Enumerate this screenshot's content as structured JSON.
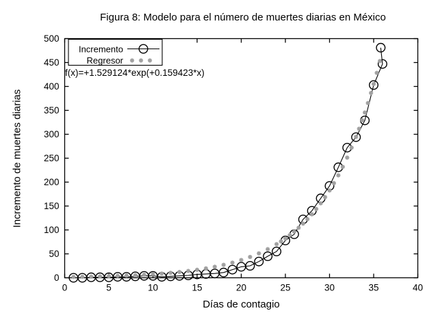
{
  "figure": {
    "background": "#ffffff"
  },
  "chart_data": {
    "type": "line+scatter",
    "title": "Figura 8: Modelo para el número de muertes diarias en México",
    "xlabel": "Días de contagio",
    "ylabel": "Incremento de muertes diarias",
    "xlim": [
      0,
      40
    ],
    "ylim": [
      0,
      500
    ],
    "xticks": [
      0,
      5,
      10,
      15,
      20,
      25,
      30,
      35,
      40
    ],
    "yticks": [
      0,
      50,
      100,
      150,
      200,
      250,
      300,
      350,
      400,
      450,
      500
    ],
    "grid": false,
    "legend_position": "top-left",
    "annotation": "f(x)=+1.529124*exp(+0.159423*x)",
    "fit_coefficients": {
      "a": 1.529124,
      "b": 0.159423
    },
    "colors": {
      "incremento": "#000000",
      "regresor": "#a0a0a0",
      "axis": "#000000"
    },
    "series": [
      {
        "name": "Incremento",
        "style": "linespoints",
        "marker": "open-circle",
        "color": "#000000",
        "points": [
          [
            1,
            0
          ],
          [
            2,
            0
          ],
          [
            3,
            1
          ],
          [
            4,
            1
          ],
          [
            5,
            1
          ],
          [
            6,
            2
          ],
          [
            7,
            2
          ],
          [
            8,
            3
          ],
          [
            9,
            4
          ],
          [
            10,
            4
          ],
          [
            11,
            2
          ],
          [
            12,
            3
          ],
          [
            13,
            4
          ],
          [
            14,
            5
          ],
          [
            15,
            7
          ],
          [
            16,
            8
          ],
          [
            17,
            9
          ],
          [
            18,
            11
          ],
          [
            19,
            17
          ],
          [
            20,
            23
          ],
          [
            21,
            25
          ],
          [
            22,
            34
          ],
          [
            23,
            45
          ],
          [
            24,
            55
          ],
          [
            25,
            78
          ],
          [
            26,
            91
          ],
          [
            27,
            122
          ],
          [
            28,
            140
          ],
          [
            29,
            166
          ],
          [
            30,
            192
          ],
          [
            31,
            231
          ],
          [
            32,
            272
          ],
          [
            33,
            294
          ],
          [
            34,
            329
          ],
          [
            35,
            403
          ],
          [
            36,
            447
          ],
          [
            35.8,
            481
          ]
        ]
      },
      {
        "name": "Regresor",
        "style": "points",
        "marker": "asterisk",
        "color": "#a0a0a0",
        "points": [
          [
            1,
            1.8
          ],
          [
            2,
            2.1
          ],
          [
            3,
            2.5
          ],
          [
            4,
            2.9
          ],
          [
            5,
            3.4
          ],
          [
            6,
            4.0
          ],
          [
            7,
            4.7
          ],
          [
            8,
            5.5
          ],
          [
            9,
            6.4
          ],
          [
            10,
            7.5
          ],
          [
            11,
            8.8
          ],
          [
            12,
            10.4
          ],
          [
            13,
            12.1
          ],
          [
            14,
            14.2
          ],
          [
            15,
            16.7
          ],
          [
            16,
            19.6
          ],
          [
            17,
            23.0
          ],
          [
            18,
            27.0
          ],
          [
            19,
            31.6
          ],
          [
            20,
            37.1
          ],
          [
            21,
            43.5
          ],
          [
            22,
            51.0
          ],
          [
            23,
            59.8
          ],
          [
            24,
            70.2
          ],
          [
            24.5,
            76.0
          ],
          [
            25,
            82.3
          ],
          [
            25.5,
            89.1
          ],
          [
            26,
            96.5
          ],
          [
            26.5,
            104.5
          ],
          [
            27,
            113.2
          ],
          [
            27.5,
            122.6
          ],
          [
            28,
            132.7
          ],
          [
            28.5,
            143.8
          ],
          [
            29,
            155.7
          ],
          [
            29.5,
            168.6
          ],
          [
            30,
            182.6
          ],
          [
            30.5,
            197.8
          ],
          [
            31,
            214.2
          ],
          [
            31.5,
            231.9
          ],
          [
            32,
            251.2
          ],
          [
            32.5,
            272.0
          ],
          [
            33,
            294.6
          ],
          [
            33.35,
            311.5
          ],
          [
            33.7,
            329.4
          ],
          [
            34,
            345.5
          ],
          [
            34.35,
            365.3
          ],
          [
            34.7,
            386.3
          ],
          [
            35,
            405.2
          ],
          [
            35.35,
            428.4
          ],
          [
            35.7,
            453.0
          ]
        ]
      }
    ]
  }
}
